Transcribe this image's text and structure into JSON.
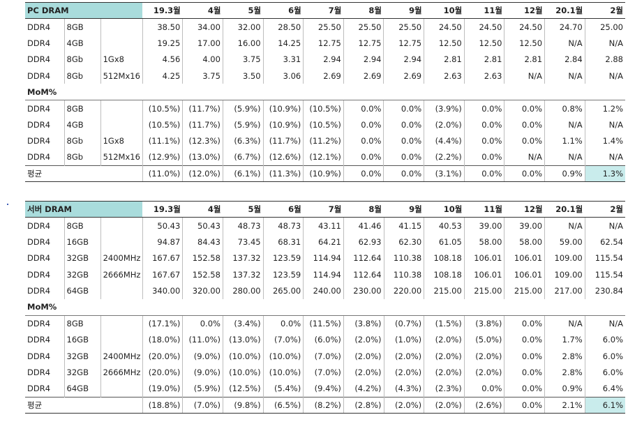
{
  "pc": {
    "title": "PC DRAM",
    "months": [
      "19.3월",
      "4월",
      "5월",
      "6월",
      "7월",
      "8월",
      "9월",
      "10월",
      "11월",
      "12월",
      "20.1월",
      "2월"
    ],
    "prices": [
      {
        "type": "DDR4",
        "cap": "8GB",
        "org": "",
        "v": [
          "38.50",
          "34.00",
          "32.00",
          "28.50",
          "25.50",
          "25.50",
          "25.50",
          "24.50",
          "24.50",
          "24.50",
          "24.70",
          "25.00"
        ]
      },
      {
        "type": "DDR4",
        "cap": "4GB",
        "org": "",
        "v": [
          "19.25",
          "17.00",
          "16.00",
          "14.25",
          "12.75",
          "12.75",
          "12.75",
          "12.50",
          "12.50",
          "12.50",
          "N/A",
          "N/A"
        ]
      },
      {
        "type": "DDR4",
        "cap": "8Gb",
        "org": "1Gx8",
        "v": [
          "4.56",
          "4.00",
          "3.75",
          "3.31",
          "2.94",
          "2.94",
          "2.94",
          "2.81",
          "2.81",
          "2.81",
          "2.84",
          "2.88"
        ]
      },
      {
        "type": "DDR4",
        "cap": "8Gb",
        "org": "512Mx16",
        "v": [
          "4.25",
          "3.75",
          "3.50",
          "3.06",
          "2.69",
          "2.69",
          "2.69",
          "2.63",
          "2.63",
          "N/A",
          "N/A",
          "N/A"
        ]
      }
    ],
    "mom_label": "MoM%",
    "mom": [
      {
        "type": "DDR4",
        "cap": "8GB",
        "org": "",
        "v": [
          "(10.5%)",
          "(11.7%)",
          "(5.9%)",
          "(10.9%)",
          "(10.5%)",
          "0.0%",
          "0.0%",
          "(3.9%)",
          "0.0%",
          "0.0%",
          "0.8%",
          "1.2%"
        ]
      },
      {
        "type": "DDR4",
        "cap": "4GB",
        "org": "",
        "v": [
          "(10.5%)",
          "(11.7%)",
          "(5.9%)",
          "(10.9%)",
          "(10.5%)",
          "0.0%",
          "0.0%",
          "(2.0%)",
          "0.0%",
          "0.0%",
          "N/A",
          "N/A"
        ]
      },
      {
        "type": "DDR4",
        "cap": "8Gb",
        "org": "1Gx8",
        "v": [
          "(11.1%)",
          "(12.3%)",
          "(6.3%)",
          "(11.7%)",
          "(11.2%)",
          "0.0%",
          "0.0%",
          "(4.4%)",
          "0.0%",
          "0.0%",
          "1.1%",
          "1.4%"
        ]
      },
      {
        "type": "DDR4",
        "cap": "8Gb",
        "org": "512Mx16",
        "v": [
          "(12.9%)",
          "(13.0%)",
          "(6.7%)",
          "(12.6%)",
          "(12.1%)",
          "0.0%",
          "0.0%",
          "(2.2%)",
          "0.0%",
          "N/A",
          "N/A",
          "N/A"
        ]
      }
    ],
    "avg": {
      "label": "평균",
      "v": [
        "(11.0%)",
        "(12.0%)",
        "(6.1%)",
        "(11.3%)",
        "(10.9%)",
        "0.0%",
        "0.0%",
        "(3.1%)",
        "0.0%",
        "0.0%",
        "0.9%",
        "1.3%"
      ]
    }
  },
  "server": {
    "title": "서버 DRAM",
    "months": [
      "19.3월",
      "4월",
      "5월",
      "6월",
      "7월",
      "8월",
      "9월",
      "10월",
      "11월",
      "12월",
      "20.1월",
      "2월"
    ],
    "prices": [
      {
        "type": "DDR4",
        "cap": "8GB",
        "org": "",
        "v": [
          "50.43",
          "50.43",
          "48.73",
          "48.73",
          "43.11",
          "41.46",
          "41.15",
          "40.53",
          "39.00",
          "39.00",
          "N/A",
          "N/A"
        ]
      },
      {
        "type": "DDR4",
        "cap": "16GB",
        "org": "",
        "v": [
          "94.87",
          "84.43",
          "73.45",
          "68.31",
          "64.21",
          "62.93",
          "62.30",
          "61.05",
          "58.00",
          "58.00",
          "59.00",
          "62.54"
        ]
      },
      {
        "type": "DDR4",
        "cap": "32GB",
        "org": "2400MHz",
        "v": [
          "167.67",
          "152.58",
          "137.32",
          "123.59",
          "114.94",
          "112.64",
          "110.38",
          "108.18",
          "106.01",
          "106.01",
          "109.00",
          "115.54"
        ]
      },
      {
        "type": "DDR4",
        "cap": "32GB",
        "org": "2666MHz",
        "v": [
          "167.67",
          "152.58",
          "137.32",
          "123.59",
          "114.94",
          "112.64",
          "110.38",
          "108.18",
          "106.01",
          "106.01",
          "109.00",
          "115.54"
        ]
      },
      {
        "type": "DDR4",
        "cap": "64GB",
        "org": "",
        "v": [
          "340.00",
          "320.00",
          "280.00",
          "265.00",
          "240.00",
          "230.00",
          "220.00",
          "215.00",
          "215.00",
          "215.00",
          "217.00",
          "230.84"
        ]
      }
    ],
    "mom_label": "MoM%",
    "mom": [
      {
        "type": "DDR4",
        "cap": "8GB",
        "org": "",
        "v": [
          "(17.1%)",
          "0.0%",
          "(3.4%)",
          "0.0%",
          "(11.5%)",
          "(3.8%)",
          "(0.7%)",
          "(1.5%)",
          "(3.8%)",
          "0.0%",
          "N/A",
          "N/A"
        ]
      },
      {
        "type": "DDR4",
        "cap": "16GB",
        "org": "",
        "v": [
          "(18.0%)",
          "(11.0%)",
          "(13.0%)",
          "(7.0%)",
          "(6.0%)",
          "(2.0%)",
          "(1.0%)",
          "(2.0%)",
          "(5.0%)",
          "0.0%",
          "1.7%",
          "6.0%"
        ]
      },
      {
        "type": "DDR4",
        "cap": "32GB",
        "org": "2400MHz",
        "v": [
          "(20.0%)",
          "(9.0%)",
          "(10.0%)",
          "(10.0%)",
          "(7.0%)",
          "(2.0%)",
          "(2.0%)",
          "(2.0%)",
          "(2.0%)",
          "0.0%",
          "2.8%",
          "6.0%"
        ]
      },
      {
        "type": "DDR4",
        "cap": "32GB",
        "org": "2666MHz",
        "v": [
          "(20.0%)",
          "(9.0%)",
          "(10.0%)",
          "(10.0%)",
          "(7.0%)",
          "(2.0%)",
          "(2.0%)",
          "(2.0%)",
          "(2.0%)",
          "0.0%",
          "2.8%",
          "6.0%"
        ]
      },
      {
        "type": "DDR4",
        "cap": "64GB",
        "org": "",
        "v": [
          "(19.0%)",
          "(5.9%)",
          "(12.5%)",
          "(5.4%)",
          "(9.4%)",
          "(4.2%)",
          "(4.3%)",
          "(2.3%)",
          "0.0%",
          "0.0%",
          "0.9%",
          "6.4%"
        ]
      }
    ],
    "avg": {
      "label": "평균",
      "v": [
        "(18.8%)",
        "(7.0%)",
        "(9.8%)",
        "(6.5%)",
        "(8.2%)",
        "(2.8%)",
        "(2.0%)",
        "(2.0%)",
        "(2.6%)",
        "0.0%",
        "2.1%",
        "6.1%"
      ]
    }
  },
  "colors": {
    "header_fill": "#a9dcdc",
    "highlight_fill": "#c9ecec"
  }
}
